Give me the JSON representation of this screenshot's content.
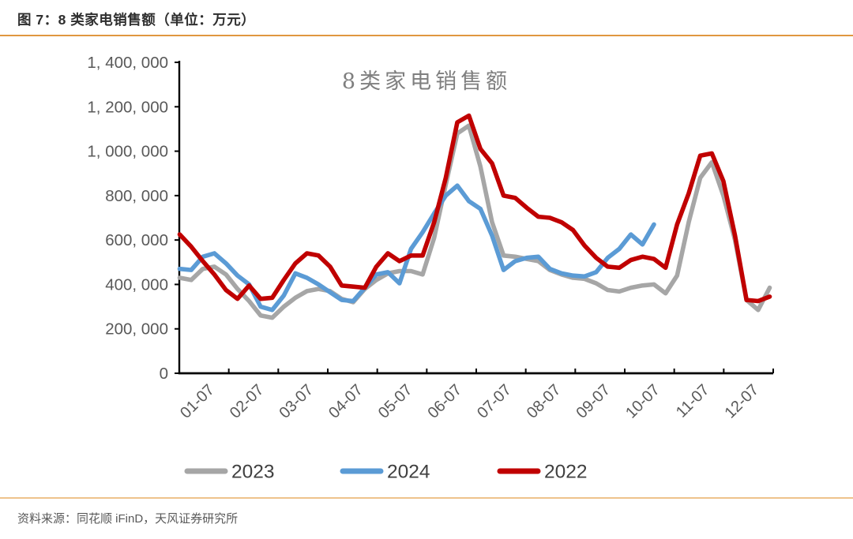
{
  "header": {
    "title": "图 7：8 类家电销售额（单位：万元）"
  },
  "footer": {
    "source": "资料来源：同花顺 iFinD，天风证券研究所"
  },
  "colors": {
    "rule_top": "#e0973f",
    "rule_bottom": "#eec38c",
    "axis": "#000000",
    "tick_label": "#595959",
    "chart_title": "#7f7f7f",
    "legend_text": "#404040",
    "series_2023": "#a6a6a6",
    "series_2024": "#5b9bd5",
    "series_2022": "#c00000"
  },
  "chart_data": {
    "type": "line",
    "title": "8类家电销售额",
    "unit_label": "万元",
    "xlabel": "",
    "ylabel": "",
    "ylim": [
      0,
      1400000
    ],
    "y_tick_values": [
      0,
      200000,
      400000,
      600000,
      800000,
      1000000,
      1200000,
      1400000
    ],
    "y_tick_labels": [
      "0",
      "200, 000",
      "400, 000",
      "600, 000",
      "800, 000",
      "1, 000, 000",
      "1, 200, 000",
      "1, 400, 000"
    ],
    "x_tick_labels": [
      "01-07",
      "02-07",
      "03-07",
      "04-07",
      "05-07",
      "06-07",
      "07-07",
      "08-07",
      "09-07",
      "10-07",
      "11-07",
      "12-07"
    ],
    "x_resolution": "weekly (52 points across 12 months)",
    "grid": "off",
    "legend_position": "bottom",
    "legend_order": [
      "2023",
      "2024",
      "2022"
    ],
    "series": [
      {
        "name": "2023",
        "color": "#a6a6a6",
        "values": [
          430000,
          420000,
          470000,
          480000,
          445000,
          380000,
          325000,
          260000,
          250000,
          300000,
          340000,
          370000,
          380000,
          370000,
          335000,
          320000,
          380000,
          420000,
          450000,
          460000,
          460000,
          445000,
          610000,
          850000,
          1080000,
          1115000,
          930000,
          680000,
          530000,
          525000,
          515000,
          505000,
          465000,
          445000,
          430000,
          425000,
          405000,
          375000,
          368000,
          385000,
          395000,
          400000,
          360000,
          440000,
          680000,
          880000,
          950000,
          800000,
          600000,
          330000,
          285000,
          385000
        ]
      },
      {
        "name": "2024",
        "color": "#5b9bd5",
        "values": [
          470000,
          465000,
          525000,
          540000,
          495000,
          440000,
          400000,
          300000,
          285000,
          350000,
          450000,
          430000,
          400000,
          365000,
          330000,
          325000,
          385000,
          445000,
          455000,
          405000,
          560000,
          635000,
          720000,
          800000,
          845000,
          775000,
          740000,
          620000,
          465000,
          505000,
          520000,
          525000,
          470000,
          450000,
          440000,
          436000,
          455000,
          520000,
          560000,
          625000,
          580000,
          670000
        ]
      },
      {
        "name": "2022",
        "color": "#c00000",
        "values": [
          625000,
          570000,
          505000,
          445000,
          375000,
          335000,
          395000,
          335000,
          340000,
          420000,
          495000,
          540000,
          530000,
          480000,
          395000,
          390000,
          385000,
          480000,
          540000,
          505000,
          530000,
          530000,
          680000,
          880000,
          1130000,
          1160000,
          1010000,
          945000,
          800000,
          790000,
          745000,
          705000,
          700000,
          680000,
          645000,
          575000,
          520000,
          480000,
          475000,
          510000,
          525000,
          515000,
          475000,
          670000,
          810000,
          980000,
          990000,
          865000,
          620000,
          330000,
          325000,
          345000
        ]
      }
    ]
  }
}
